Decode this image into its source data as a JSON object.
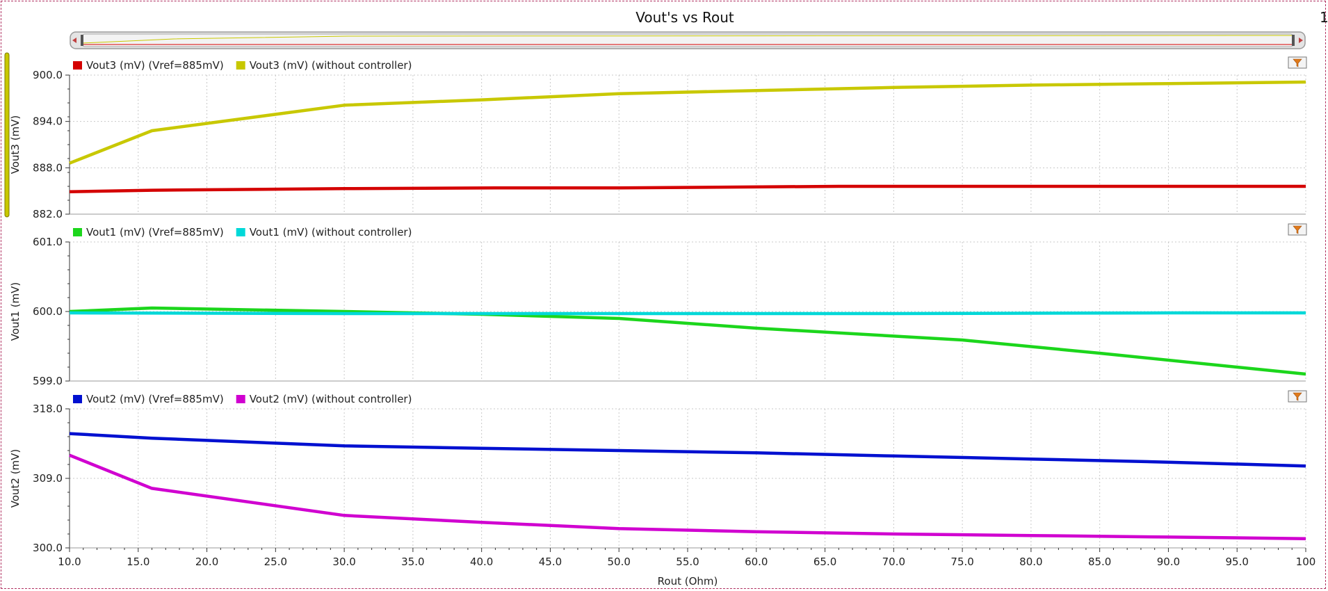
{
  "title": "Vout's vs Rout",
  "corner_label": "1",
  "x_axis": {
    "label": "Rout (Ohm)",
    "ticks": [
      "10.0",
      "15.0",
      "20.0",
      "25.0",
      "30.0",
      "35.0",
      "40.0",
      "45.0",
      "50.0",
      "55.0",
      "60.0",
      "65.0",
      "70.0",
      "75.0",
      "80.0",
      "85.0",
      "90.0",
      "95.0",
      "100"
    ],
    "tick_values": [
      10,
      15,
      20,
      25,
      30,
      35,
      40,
      45,
      50,
      55,
      60,
      65,
      70,
      75,
      80,
      85,
      90,
      95,
      100
    ],
    "range": [
      10,
      100
    ]
  },
  "colors": {
    "vout3_ctrl": "#d40000",
    "vout3_noctrl": "#c8c800",
    "vout1_ctrl": "#1cd61c",
    "vout1_noctrl": "#00d8d8",
    "vout2_ctrl": "#0010d0",
    "vout2_noctrl": "#d000d0",
    "grid": "#c8c8c8",
    "slider": "#c8c8c8"
  },
  "icons": {
    "filter": "filter-funnel-icon",
    "scroll_left": "arrow-left-icon",
    "scroll_right": "arrow-right-icon"
  },
  "chart_data": [
    {
      "type": "line",
      "ylabel": "Vout3 (mV)",
      "ylim": [
        882.0,
        900.0
      ],
      "yticks": [
        "900.0",
        "894.0",
        "888.0",
        "882.0"
      ],
      "ytick_values": [
        900,
        894,
        888,
        882
      ],
      "grid": true,
      "legend_position": "top-left",
      "series": [
        {
          "name": "Vout3 (mV) (Vref=885mV)",
          "color": "#d40000",
          "x": [
            10,
            16,
            30,
            41,
            50,
            66,
            80,
            100
          ],
          "y": [
            884.9,
            885.1,
            885.3,
            885.4,
            885.4,
            885.6,
            885.6,
            885.6
          ]
        },
        {
          "name": "Vout3 (mV) (without controller)",
          "color": "#c8c800",
          "x": [
            10,
            16,
            30,
            40,
            50,
            60,
            70,
            80,
            90,
            100
          ],
          "y": [
            888.6,
            892.8,
            896.1,
            896.8,
            897.6,
            898.0,
            898.4,
            898.7,
            898.9,
            899.1
          ]
        }
      ]
    },
    {
      "type": "line",
      "ylabel": "Vout1 (mV)",
      "ylim": [
        599.0,
        601.0
      ],
      "yticks": [
        "601.0",
        "600.0",
        "599.0"
      ],
      "ytick_values": [
        601,
        600,
        599
      ],
      "grid": true,
      "legend_position": "top-left",
      "series": [
        {
          "name": "Vout1 (mV) (Vref=885mV)",
          "color": "#1cd61c",
          "x": [
            10,
            16,
            30,
            40,
            50,
            60,
            75,
            85,
            100
          ],
          "y": [
            600.0,
            600.05,
            600.0,
            599.96,
            599.9,
            599.76,
            599.59,
            599.4,
            599.1
          ]
        },
        {
          "name": "Vout1 (mV) (without controller)",
          "color": "#00d8d8",
          "x": [
            10,
            30,
            50,
            70,
            90,
            100
          ],
          "y": [
            599.98,
            599.97,
            599.97,
            599.97,
            599.98,
            599.98
          ]
        }
      ]
    },
    {
      "type": "line",
      "ylabel": "Vout2 (mV)",
      "ylim": [
        300.0,
        318.0
      ],
      "yticks": [
        "318.0",
        "309.0",
        "300.0"
      ],
      "ytick_values": [
        318,
        309,
        300
      ],
      "grid": true,
      "legend_position": "top-left",
      "series": [
        {
          "name": "Vout2 (mV) (Vref=885mV)",
          "color": "#0010d0",
          "x": [
            10,
            16,
            30,
            40,
            50,
            60,
            70,
            80,
            90,
            100
          ],
          "y": [
            314.8,
            314.2,
            313.2,
            312.9,
            312.6,
            312.3,
            311.9,
            311.5,
            311.1,
            310.6
          ]
        },
        {
          "name": "Vout2 (mV) (without controller)",
          "color": "#d000d0",
          "x": [
            10,
            16,
            30,
            40,
            50,
            60,
            70,
            80,
            90,
            100
          ],
          "y": [
            312.0,
            307.7,
            304.2,
            303.3,
            302.5,
            302.1,
            301.8,
            301.6,
            301.4,
            301.2
          ]
        }
      ]
    }
  ]
}
